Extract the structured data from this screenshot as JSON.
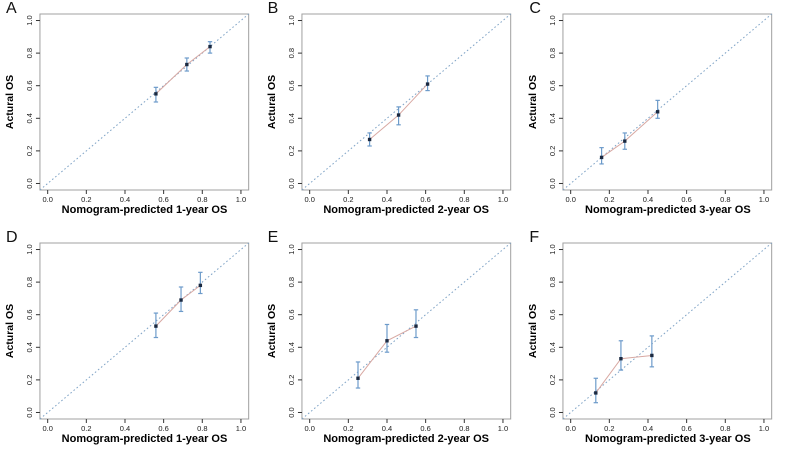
{
  "figure": {
    "background": "#ffffff",
    "colors": {
      "frame": "#a0a0a0",
      "tick": "#333333",
      "text": "#222222",
      "diagonal": "#7fa3c6",
      "error_bar": "#6d9bca",
      "marker": "#1b2940",
      "connector": "#d8a8a2"
    }
  },
  "chart_data": [
    {
      "panel_label": "A",
      "type": "scatter",
      "xlabel": "Nomogram-predicted 1-year OS",
      "ylabel": "Actural OS",
      "xlim": [
        -0.04,
        1.04
      ],
      "ylim": [
        -0.04,
        1.04
      ],
      "xticks": [
        "0.0",
        "0.2",
        "0.4",
        "0.6",
        "0.8",
        "1.0"
      ],
      "yticks": [
        "0.0",
        "0.2",
        "0.4",
        "0.6",
        "0.8",
        "1.0"
      ],
      "grid": false,
      "diagonal": true,
      "series": [
        {
          "name": "calibration",
          "x": [
            0.56,
            0.72,
            0.84
          ],
          "y": [
            0.55,
            0.73,
            0.84
          ],
          "y_low": [
            0.5,
            0.69,
            0.8
          ],
          "y_high": [
            0.59,
            0.77,
            0.87
          ]
        }
      ]
    },
    {
      "panel_label": "B",
      "type": "scatter",
      "xlabel": "Nomogram-predicted 2-year OS",
      "ylabel": "Actural OS",
      "xlim": [
        -0.04,
        1.04
      ],
      "ylim": [
        -0.04,
        1.04
      ],
      "xticks": [
        "0.0",
        "0.2",
        "0.4",
        "0.6",
        "0.8",
        "1.0"
      ],
      "yticks": [
        "0.0",
        "0.2",
        "0.4",
        "0.6",
        "0.8",
        "1.0"
      ],
      "grid": false,
      "diagonal": true,
      "series": [
        {
          "name": "calibration",
          "x": [
            0.31,
            0.46,
            0.61
          ],
          "y": [
            0.27,
            0.42,
            0.61
          ],
          "y_low": [
            0.23,
            0.36,
            0.57
          ],
          "y_high": [
            0.31,
            0.47,
            0.66
          ]
        }
      ]
    },
    {
      "panel_label": "C",
      "type": "scatter",
      "xlabel": "Nomogram-predicted 3-year OS",
      "ylabel": "Actural OS",
      "xlim": [
        -0.04,
        1.04
      ],
      "ylim": [
        -0.04,
        1.04
      ],
      "xticks": [
        "0.0",
        "0.2",
        "0.4",
        "0.6",
        "0.8",
        "1.0"
      ],
      "yticks": [
        "0.0",
        "0.2",
        "0.4",
        "0.6",
        "0.8",
        "1.0"
      ],
      "grid": false,
      "diagonal": true,
      "series": [
        {
          "name": "calibration",
          "x": [
            0.16,
            0.28,
            0.45
          ],
          "y": [
            0.16,
            0.26,
            0.44
          ],
          "y_low": [
            0.12,
            0.21,
            0.4
          ],
          "y_high": [
            0.22,
            0.31,
            0.51
          ]
        }
      ]
    },
    {
      "panel_label": "D",
      "type": "scatter",
      "xlabel": "Nomogram-predicted 1-year OS",
      "ylabel": "Actural OS",
      "xlim": [
        -0.04,
        1.04
      ],
      "ylim": [
        -0.04,
        1.04
      ],
      "xticks": [
        "0.0",
        "0.2",
        "0.4",
        "0.6",
        "0.8",
        "1.0"
      ],
      "yticks": [
        "0.0",
        "0.2",
        "0.4",
        "0.6",
        "0.8",
        "1.0"
      ],
      "grid": false,
      "diagonal": true,
      "series": [
        {
          "name": "calibration",
          "x": [
            0.56,
            0.69,
            0.79
          ],
          "y": [
            0.53,
            0.69,
            0.78
          ],
          "y_low": [
            0.46,
            0.62,
            0.73
          ],
          "y_high": [
            0.61,
            0.77,
            0.86
          ]
        }
      ]
    },
    {
      "panel_label": "E",
      "type": "scatter",
      "xlabel": "Nomogram-predicted 2-year OS",
      "ylabel": "Actural OS",
      "xlim": [
        -0.04,
        1.04
      ],
      "ylim": [
        -0.04,
        1.04
      ],
      "xticks": [
        "0.0",
        "0.2",
        "0.4",
        "0.6",
        "0.8",
        "1.0"
      ],
      "yticks": [
        "0.0",
        "0.2",
        "0.4",
        "0.6",
        "0.8",
        "1.0"
      ],
      "grid": false,
      "diagonal": true,
      "series": [
        {
          "name": "calibration",
          "x": [
            0.25,
            0.4,
            0.55
          ],
          "y": [
            0.21,
            0.44,
            0.53
          ],
          "y_low": [
            0.15,
            0.37,
            0.46
          ],
          "y_high": [
            0.31,
            0.54,
            0.63
          ]
        }
      ]
    },
    {
      "panel_label": "F",
      "type": "scatter",
      "xlabel": "Nomogram-predicted 3-year OS",
      "ylabel": "Actural OS",
      "xlim": [
        -0.04,
        1.04
      ],
      "ylim": [
        -0.04,
        1.04
      ],
      "xticks": [
        "0.0",
        "0.2",
        "0.4",
        "0.6",
        "0.8",
        "1.0"
      ],
      "yticks": [
        "0.0",
        "0.2",
        "0.4",
        "0.6",
        "0.8",
        "1.0"
      ],
      "grid": false,
      "diagonal": true,
      "series": [
        {
          "name": "calibration",
          "x": [
            0.13,
            0.26,
            0.42
          ],
          "y": [
            0.12,
            0.33,
            0.35
          ],
          "y_low": [
            0.06,
            0.26,
            0.28
          ],
          "y_high": [
            0.21,
            0.44,
            0.47
          ]
        }
      ]
    }
  ]
}
